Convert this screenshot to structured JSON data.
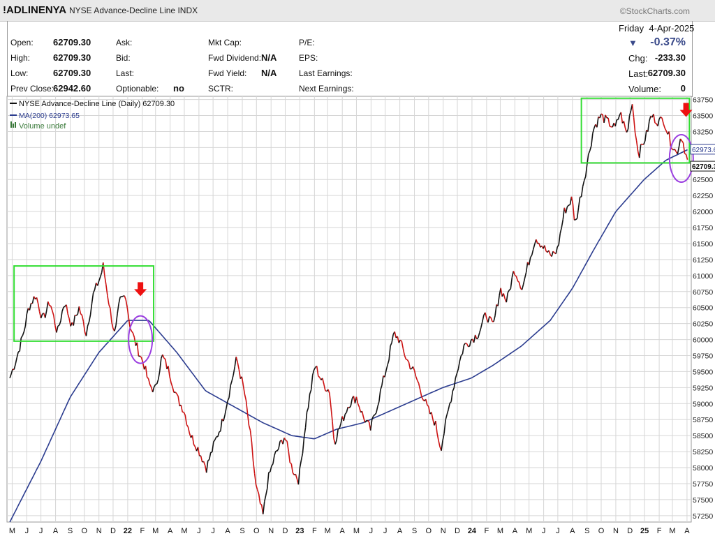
{
  "header": {
    "ticker": "!ADLINENYA",
    "name": "NYSE Advance-Decline Line",
    "exchange": "INDX",
    "credit": "©StockCharts.com"
  },
  "quote": {
    "open_label": "Open:",
    "open": "62709.30",
    "high_label": "High:",
    "high": "62709.30",
    "low_label": "Low:",
    "low": "62709.30",
    "prev_close_label": "Prev Close:",
    "prev_close": "62942.60",
    "ask_label": "Ask:",
    "bid_label": "Bid:",
    "last_label": "Last:",
    "optionable_label": "Optionable:",
    "optionable": "no",
    "mkt_cap_label": "Mkt Cap:",
    "fwd_div_label": "Fwd Dividend:",
    "fwd_div": "N/A",
    "fwd_yield_label": "Fwd Yield:",
    "fwd_yield": "N/A",
    "sctr_label": "SCTR:",
    "pe_label": "P/E:",
    "eps_label": "EPS:",
    "last_earn_label": "Last Earnings:",
    "next_earn_label": "Next Earnings:",
    "date_day": "Friday",
    "date": "4-Apr-2025",
    "pct_change": "-0.37%",
    "chg_label": "Chg:",
    "chg": "-233.30",
    "last_right_label": "Last:",
    "last_value": "62709.30",
    "volume_label": "Volume:",
    "volume": "0"
  },
  "colors": {
    "up": "#111111",
    "down": "#cc1111",
    "ma": "#2b3c8f",
    "box": "#33dd33",
    "circle": "#9b3fe0",
    "arrow": "#ee1111"
  },
  "chart_data": {
    "type": "line",
    "title": "NYSE Advance-Decline Line (Daily) 62709.30",
    "legend": [
      {
        "label": "NYSE Advance-Decline Line (Daily) 62709.30",
        "color": "#111111"
      },
      {
        "label": "MA(200) 62973.65",
        "color": "#2b3c8f"
      },
      {
        "label": "Volume undef",
        "color": "#3a7a3a"
      }
    ],
    "y_ticks": [
      57250,
      57500,
      57750,
      58000,
      58250,
      58500,
      58750,
      59000,
      59250,
      59500,
      59750,
      60000,
      60250,
      60500,
      60750,
      61000,
      61250,
      61500,
      61750,
      62000,
      62250,
      62500,
      62750,
      63000,
      63250,
      63500,
      63750
    ],
    "ylim": [
      57150,
      63800
    ],
    "x_labels": [
      "M",
      "J",
      "J",
      "A",
      "S",
      "O",
      "N",
      "D",
      "22",
      "F",
      "M",
      "A",
      "M",
      "J",
      "J",
      "A",
      "S",
      "O",
      "N",
      "D",
      "23",
      "F",
      "M",
      "A",
      "M",
      "J",
      "J",
      "A",
      "S",
      "O",
      "N",
      "D",
      "24",
      "F",
      "M",
      "A",
      "M",
      "J",
      "J",
      "A",
      "S",
      "O",
      "N",
      "D",
      "25",
      "F",
      "M",
      "A"
    ],
    "x_domain": [
      "2021-05",
      "2025-04"
    ],
    "price_label": "62709.30",
    "ma_label": "62973.65",
    "price_keypoints": [
      [
        "2021-04-26",
        59400
      ],
      [
        "2021-05-10",
        59700
      ],
      [
        "2021-05-25",
        60100
      ],
      [
        "2021-06-05",
        60500
      ],
      [
        "2021-06-20",
        60700
      ],
      [
        "2021-07-05",
        60300
      ],
      [
        "2021-07-20",
        60600
      ],
      [
        "2021-08-05",
        60100
      ],
      [
        "2021-08-20",
        60600
      ],
      [
        "2021-09-05",
        60200
      ],
      [
        "2021-09-20",
        60500
      ],
      [
        "2021-10-05",
        60100
      ],
      [
        "2021-10-20",
        60700
      ],
      [
        "2021-11-05",
        61000
      ],
      [
        "2021-11-10",
        61150
      ],
      [
        "2021-11-25",
        60450
      ],
      [
        "2021-12-05",
        60050
      ],
      [
        "2021-12-15",
        60600
      ],
      [
        "2021-12-28",
        60700
      ],
      [
        "2022-01-05",
        60250
      ],
      [
        "2022-01-15",
        60000
      ],
      [
        "2022-01-25",
        59800
      ],
      [
        "2022-02-05",
        59600
      ],
      [
        "2022-02-15",
        59300
      ],
      [
        "2022-02-28",
        59200
      ],
      [
        "2022-03-15",
        59750
      ],
      [
        "2022-03-30",
        59500
      ],
      [
        "2022-04-15",
        59100
      ],
      [
        "2022-04-30",
        58900
      ],
      [
        "2022-05-15",
        58500
      ],
      [
        "2022-05-30",
        58300
      ],
      [
        "2022-06-17",
        58000
      ],
      [
        "2022-07-05",
        58400
      ],
      [
        "2022-07-20",
        58700
      ],
      [
        "2022-08-05",
        59200
      ],
      [
        "2022-08-20",
        59700
      ],
      [
        "2022-09-05",
        59200
      ],
      [
        "2022-09-20",
        58400
      ],
      [
        "2022-09-30",
        57700
      ],
      [
        "2022-10-15",
        57250
      ],
      [
        "2022-10-25",
        57800
      ],
      [
        "2022-11-10",
        58200
      ],
      [
        "2022-11-30",
        58500
      ],
      [
        "2022-12-15",
        58000
      ],
      [
        "2022-12-30",
        57800
      ],
      [
        "2023-01-15",
        58800
      ],
      [
        "2023-02-02",
        59600
      ],
      [
        "2023-02-20",
        59300
      ],
      [
        "2023-03-05",
        59200
      ],
      [
        "2023-03-15",
        58400
      ],
      [
        "2023-03-30",
        58700
      ],
      [
        "2023-04-15",
        59000
      ],
      [
        "2023-05-01",
        59100
      ],
      [
        "2023-05-15",
        58800
      ],
      [
        "2023-05-31",
        58600
      ],
      [
        "2023-06-15",
        59000
      ],
      [
        "2023-07-05",
        59600
      ],
      [
        "2023-07-20",
        60100
      ],
      [
        "2023-07-31",
        60000
      ],
      [
        "2023-08-15",
        59700
      ],
      [
        "2023-08-31",
        59500
      ],
      [
        "2023-09-15",
        59200
      ],
      [
        "2023-09-30",
        58900
      ],
      [
        "2023-10-15",
        58700
      ],
      [
        "2023-10-27",
        58300
      ],
      [
        "2023-11-15",
        59000
      ],
      [
        "2023-11-30",
        59500
      ],
      [
        "2023-12-15",
        59900
      ],
      [
        "2023-12-31",
        60000
      ],
      [
        "2024-01-15",
        60100
      ],
      [
        "2024-01-31",
        60400
      ],
      [
        "2024-02-15",
        60200
      ],
      [
        "2024-03-01",
        60800
      ],
      [
        "2024-03-15",
        60600
      ],
      [
        "2024-03-31",
        61100
      ],
      [
        "2024-04-17",
        60800
      ],
      [
        "2024-04-30",
        61200
      ],
      [
        "2024-05-15",
        61600
      ],
      [
        "2024-05-31",
        61450
      ],
      [
        "2024-06-15",
        61300
      ],
      [
        "2024-06-30",
        61400
      ],
      [
        "2024-07-15",
        62000
      ],
      [
        "2024-07-31",
        62200
      ],
      [
        "2024-08-07",
        61800
      ],
      [
        "2024-08-20",
        62300
      ],
      [
        "2024-08-31",
        62700
      ],
      [
        "2024-09-15",
        63300
      ],
      [
        "2024-09-30",
        63500
      ],
      [
        "2024-10-15",
        63400
      ],
      [
        "2024-10-31",
        63300
      ],
      [
        "2024-11-10",
        63550
      ],
      [
        "2024-11-25",
        63200
      ],
      [
        "2024-12-05",
        63750
      ],
      [
        "2024-12-15",
        63100
      ],
      [
        "2024-12-20",
        62900
      ],
      [
        "2025-01-05",
        63200
      ],
      [
        "2025-01-15",
        63500
      ],
      [
        "2025-01-31",
        63400
      ],
      [
        "2025-02-10",
        63450
      ],
      [
        "2025-02-25",
        63100
      ],
      [
        "2025-03-10",
        62900
      ],
      [
        "2025-03-20",
        63200
      ],
      [
        "2025-03-28",
        62950
      ],
      [
        "2025-04-04",
        62709
      ]
    ],
    "ma_keypoints": [
      [
        "2021-04-26",
        57150
      ],
      [
        "2021-07-01",
        58100
      ],
      [
        "2021-09-01",
        59100
      ],
      [
        "2021-11-01",
        59800
      ],
      [
        "2022-01-01",
        60300
      ],
      [
        "2022-02-15",
        60300
      ],
      [
        "2022-04-15",
        59800
      ],
      [
        "2022-06-15",
        59200
      ],
      [
        "2022-08-15",
        58950
      ],
      [
        "2022-10-15",
        58700
      ],
      [
        "2022-12-15",
        58500
      ],
      [
        "2023-02-01",
        58450
      ],
      [
        "2023-03-20",
        58600
      ],
      [
        "2023-05-15",
        58700
      ],
      [
        "2023-06-15",
        58800
      ],
      [
        "2023-09-15",
        59100
      ],
      [
        "2023-10-31",
        59250
      ],
      [
        "2023-12-31",
        59400
      ],
      [
        "2024-02-15",
        59600
      ],
      [
        "2024-04-15",
        59900
      ],
      [
        "2024-06-15",
        60300
      ],
      [
        "2024-08-01",
        60800
      ],
      [
        "2024-09-15",
        61400
      ],
      [
        "2024-11-01",
        62000
      ],
      [
        "2024-12-31",
        62500
      ],
      [
        "2025-02-15",
        62800
      ],
      [
        "2025-04-04",
        62973
      ]
    ],
    "annotations": [
      {
        "type": "rect",
        "from": "2021-05-05",
        "to": "2022-02-25",
        "ymin": 59975,
        "ymax": 61150
      },
      {
        "type": "ellipse",
        "at": "2022-01-28",
        "y": 60000
      },
      {
        "type": "arrow_down",
        "at": "2022-01-28",
        "y": 60700
      },
      {
        "type": "rect",
        "from": "2024-08-20",
        "to": "2025-04-06",
        "ymin": 62760,
        "ymax": 63770
      },
      {
        "type": "ellipse",
        "at": "2025-03-20",
        "y": 62830
      },
      {
        "type": "arrow_down",
        "at": "2025-03-30",
        "y": 63500
      }
    ]
  }
}
